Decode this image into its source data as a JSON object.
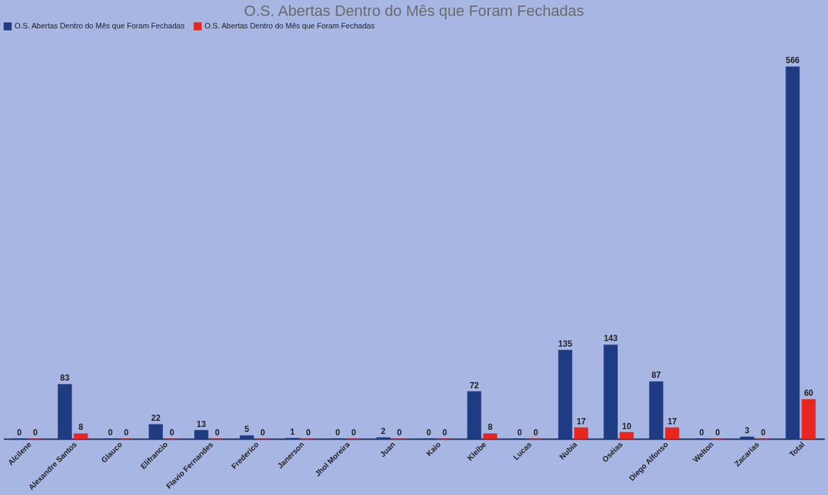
{
  "chart_data": {
    "type": "bar",
    "title": "O.S. Abertas Dentro do Mês que Foram Fechadas",
    "categories": [
      "Alcilene",
      "Alexandre Santos",
      "Glauco",
      "Elifrancio",
      "Flavio Fernandes",
      "Frederico",
      "Janerson",
      "Jhol Moreira",
      "Juan",
      "Kaio",
      "Kleibe",
      "Lucas",
      "Nubia",
      "Oséias",
      "Diego Alfonso",
      "Welton",
      "Zacarias",
      "Total"
    ],
    "series": [
      {
        "name": "O.S. Abertas Dentro do Mês que Foram Fechadas",
        "color": "#1f3b82",
        "values": [
          0,
          83,
          0,
          22,
          13,
          5,
          1,
          0,
          2,
          0,
          72,
          0,
          135,
          143,
          87,
          0,
          3,
          566
        ]
      },
      {
        "name": "O.S. Abertas Dentro do Mês que Foram Fechadas",
        "color": "#e8251f",
        "values": [
          0,
          8,
          0,
          0,
          0,
          0,
          0,
          0,
          0,
          0,
          8,
          0,
          17,
          10,
          17,
          0,
          0,
          60
        ]
      }
    ],
    "data_labels": true,
    "legend": "top",
    "grid": false
  }
}
